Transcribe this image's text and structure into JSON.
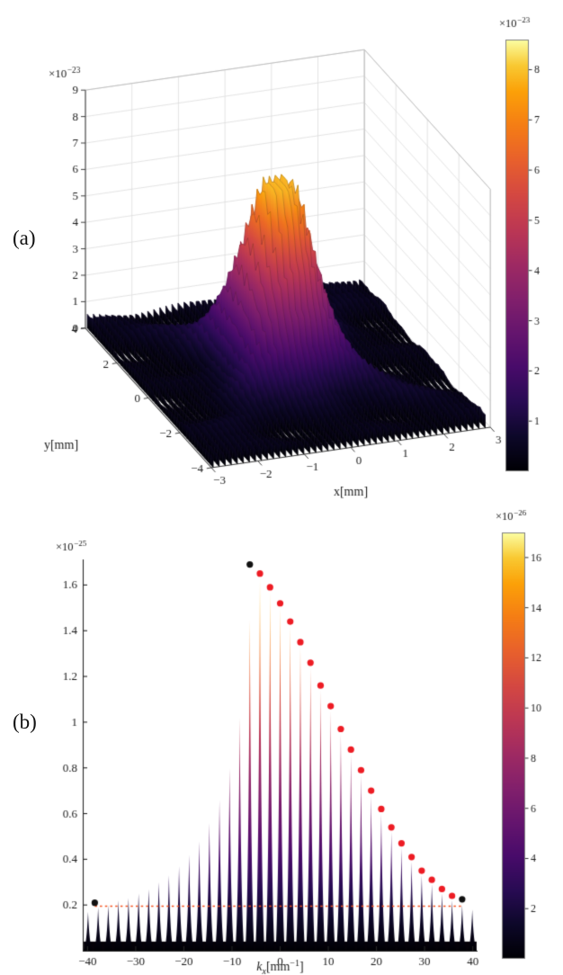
{
  "page": {
    "background": "#ffffff"
  },
  "colormap": {
    "name": "inferno",
    "stops": [
      [
        0,
        "#000004"
      ],
      [
        0.08,
        "#0d0829"
      ],
      [
        0.16,
        "#280b53"
      ],
      [
        0.24,
        "#480b6a"
      ],
      [
        0.32,
        "#65156e"
      ],
      [
        0.4,
        "#82206c"
      ],
      [
        0.48,
        "#9f2a63"
      ],
      [
        0.56,
        "#bc3754"
      ],
      [
        0.64,
        "#d44842"
      ],
      [
        0.72,
        "#e8602d"
      ],
      [
        0.8,
        "#f57d15"
      ],
      [
        0.88,
        "#fca108"
      ],
      [
        0.94,
        "#f9c932"
      ],
      [
        1,
        "#fcffa4"
      ]
    ]
  },
  "chart_data": [
    {
      "panel_label": "(a)",
      "type": "surface3d",
      "xlabel": "x[mm]",
      "ylabel": "y[mm]",
      "x_ticks": [
        -3,
        -2,
        -1,
        0,
        1,
        2,
        3
      ],
      "y_ticks": [
        -4,
        -2,
        0,
        2,
        4
      ],
      "z_ticks": [
        0,
        1,
        2,
        3,
        4,
        5,
        6,
        7,
        8,
        9
      ],
      "z_exponent": {
        "prefix": "×10",
        "exp": "-23"
      },
      "xlim": [
        -3,
        3
      ],
      "ylim": [
        -4,
        4
      ],
      "zlim": [
        0,
        9
      ],
      "surface": {
        "description": "comb-modulated intensity surface: dense thin spikes along x under a Gaussian central peak with diagonal X-shaped arms and low rippled floor",
        "comb_period_x_mm": 0.13,
        "peak_height": 7.2,
        "peak_center": [
          -0.15,
          0.2
        ],
        "gaussian_sigma": [
          0.88,
          1.6
        ],
        "floor_level": 0.35,
        "arm_amplitude": 0.95
      },
      "colorbar": {
        "ticks": [
          1,
          2,
          3,
          4,
          5,
          6,
          7,
          8
        ],
        "clim": [
          0,
          8.6
        ],
        "exponent": {
          "prefix": "×10",
          "exp": "-23"
        }
      }
    },
    {
      "panel_label": "(b)",
      "type": "comb-spectrum",
      "xlabel_segments": [
        {
          "t": "k",
          "italic": true
        },
        {
          "t": "x",
          "italic": true,
          "sub": true
        },
        {
          "t": "[mm"
        },
        {
          "t": "-1",
          "sup": true
        },
        {
          "t": "]"
        }
      ],
      "x_ticks": [
        -40,
        -30,
        -20,
        -10,
        0,
        10,
        20,
        30,
        40
      ],
      "y_ticks": [
        0.2,
        0.4,
        0.6,
        0.8,
        1,
        1.2,
        1.4,
        1.6
      ],
      "y_exponent": {
        "prefix": "×10",
        "exp": "-25"
      },
      "xlim": [
        -41,
        41
      ],
      "ylim": [
        0,
        1.7
      ],
      "spikes": {
        "k": [
          -39.9,
          -37.8,
          -35.7,
          -33.6,
          -31.5,
          -29.4,
          -27.3,
          -25.2,
          -23.1,
          -21,
          -18.9,
          -16.8,
          -14.7,
          -12.6,
          -10.5,
          -8.4,
          -6.3,
          -4.2,
          -2.1,
          0,
          2.1,
          4.2,
          6.3,
          8.4,
          10.5,
          12.6,
          14.7,
          16.8,
          18.9,
          21,
          23.1,
          25.2,
          27.3,
          29.4,
          31.5,
          33.6,
          35.7,
          37.8,
          39.9
        ],
        "h": [
          0.17,
          0.19,
          0.2,
          0.22,
          0.23,
          0.25,
          0.27,
          0.3,
          0.33,
          0.37,
          0.42,
          0.48,
          0.56,
          0.66,
          0.8,
          1.02,
          1.45,
          1.63,
          1.57,
          1.5,
          1.42,
          1.33,
          1.24,
          1.14,
          1.05,
          0.95,
          0.86,
          0.77,
          0.68,
          0.6,
          0.52,
          0.45,
          0.39,
          0.33,
          0.29,
          0.25,
          0.22,
          0.2,
          0.18
        ]
      },
      "red_dots": {
        "color": "#ed1c24",
        "k": [
          -4.2,
          -2.1,
          0,
          2.1,
          4.2,
          6.3,
          8.4,
          10.5,
          12.6,
          14.7,
          16.8,
          18.9,
          21,
          23.1,
          25.2,
          27.3,
          29.4,
          31.5,
          33.6,
          35.7
        ],
        "h": [
          1.63,
          1.57,
          1.5,
          1.42,
          1.33,
          1.24,
          1.14,
          1.05,
          0.95,
          0.86,
          0.77,
          0.68,
          0.6,
          0.52,
          0.45,
          0.39,
          0.33,
          0.29,
          0.25,
          0.22
        ]
      },
      "black_dots": {
        "color": "#111111",
        "points": [
          [
            -6.3,
            1.69
          ],
          [
            -38.5,
            0.21
          ],
          [
            37.8,
            0.225
          ]
        ]
      },
      "dashed_line": {
        "y": 0.195,
        "x1": -38.5,
        "x2": 37.8,
        "color": "#f4511e",
        "style": "dashed"
      },
      "colorbar": {
        "ticks": [
          2,
          4,
          6,
          8,
          10,
          12,
          14,
          16
        ],
        "clim": [
          0,
          17
        ],
        "exponent": {
          "prefix": "×10",
          "exp": "-26"
        }
      }
    }
  ]
}
